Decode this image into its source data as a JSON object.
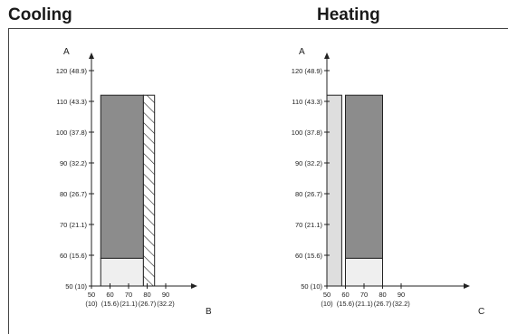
{
  "titles": {
    "cooling": "Cooling",
    "heating": "Heating"
  },
  "colors": {
    "dark_region": "#8c8c8c",
    "light_region": "#efefef",
    "shaded_region": "#dedede",
    "line": "#222222"
  },
  "chart_data": [
    {
      "type": "operating-range",
      "title": "Cooling",
      "y_axis_letter": "A",
      "x_axis_letter": "B",
      "y_ticks": [
        {
          "value": 50,
          "label": "50 (10)"
        },
        {
          "value": 60,
          "label": "60 (15.6)"
        },
        {
          "value": 70,
          "label": "70 (21.1)"
        },
        {
          "value": 80,
          "label": "80 (26.7)"
        },
        {
          "value": 90,
          "label": "90 (32.2)"
        },
        {
          "value": 100,
          "label": "100 (37.8)"
        },
        {
          "value": 110,
          "label": "110 (43.3)"
        },
        {
          "value": 120,
          "label": "120 (48.9)"
        }
      ],
      "x_ticks": [
        {
          "value": 50,
          "top": "50",
          "bottom": "(10)"
        },
        {
          "value": 60,
          "top": "60",
          "bottom": "(15.6)"
        },
        {
          "value": 70,
          "top": "70",
          "bottom": "(21.1)"
        },
        {
          "value": 80,
          "top": "80",
          "bottom": "(26.7)"
        },
        {
          "value": 90,
          "top": "90",
          "bottom": "(32.2)"
        }
      ],
      "regions": [
        {
          "x": [
            55,
            78
          ],
          "y": [
            59,
            112
          ],
          "style": "dark"
        },
        {
          "x": [
            55,
            78
          ],
          "y": [
            50,
            59
          ],
          "style": "light"
        },
        {
          "x": [
            78,
            84
          ],
          "y": [
            50,
            112
          ],
          "style": "hatched"
        }
      ]
    },
    {
      "type": "operating-range",
      "title": "Heating",
      "y_axis_letter": "A",
      "x_axis_letter": "C",
      "y_ticks": [
        {
          "value": 50,
          "label": "50 (10)"
        },
        {
          "value": 60,
          "label": "60 (15.6)"
        },
        {
          "value": 70,
          "label": "70 (21.1)"
        },
        {
          "value": 80,
          "label": "80 (26.7)"
        },
        {
          "value": 90,
          "label": "90 (32.2)"
        },
        {
          "value": 100,
          "label": "100 (37.8)"
        },
        {
          "value": 110,
          "label": "110 (43.3)"
        },
        {
          "value": 120,
          "label": "120 (48.9)"
        }
      ],
      "x_ticks": [
        {
          "value": 50,
          "top": "50",
          "bottom": "(10)"
        },
        {
          "value": 60,
          "top": "60",
          "bottom": "(15.6)"
        },
        {
          "value": 70,
          "top": "70",
          "bottom": "(21.1)"
        },
        {
          "value": 80,
          "top": "80",
          "bottom": "(26.7)"
        },
        {
          "value": 90,
          "top": "90",
          "bottom": "(32.2)"
        }
      ],
      "regions": [
        {
          "x": [
            50,
            58
          ],
          "y": [
            50,
            112
          ],
          "style": "shaded"
        },
        {
          "x": [
            60,
            80
          ],
          "y": [
            59,
            112
          ],
          "style": "dark"
        },
        {
          "x": [
            60,
            80
          ],
          "y": [
            50,
            59
          ],
          "style": "light"
        }
      ]
    }
  ]
}
